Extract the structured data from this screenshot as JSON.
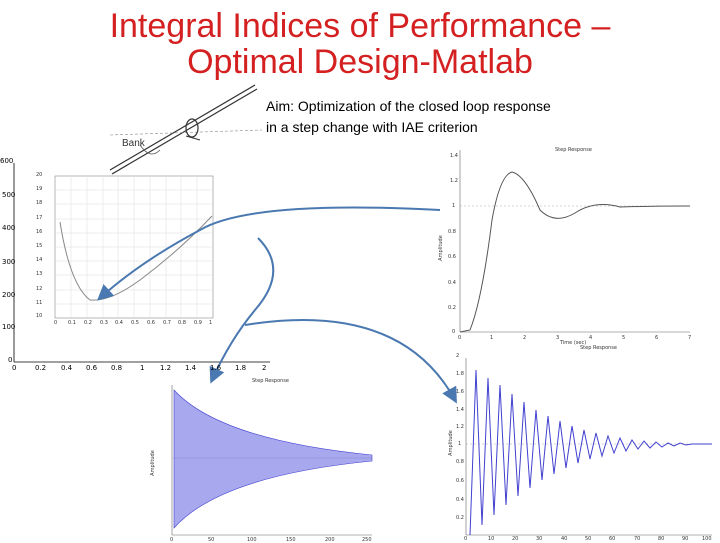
{
  "slide": {
    "title_line1": "Integral Indices of Performance –",
    "title_line2": "Optimal Design-Matlab",
    "aim_line1": "Aim: Optimization of  the closed loop response",
    "aim_line2": "in a step change with IAE criterion",
    "bank_label": "Bank"
  },
  "big_chart": {
    "y_ticks": [
      "600",
      "500",
      "400",
      "300",
      "200",
      "100",
      "0"
    ],
    "x_ticks": [
      "0",
      "0.2",
      "0.4",
      "0.6",
      "0.8",
      "1",
      "1.2",
      "1.4",
      "1.6",
      "1.8",
      "2"
    ]
  },
  "inset_chart": {
    "y_ticks": [
      "20",
      "19",
      "18",
      "17",
      "16",
      "15",
      "14",
      "13",
      "12",
      "11",
      "10"
    ],
    "x_ticks": [
      "0",
      "0.1",
      "0.2",
      "0.3",
      "0.4",
      "0.5",
      "0.6",
      "0.7",
      "0.8",
      "0.9",
      "1"
    ]
  },
  "step_chart": {
    "title": "Step Response",
    "xlabel": "Time (sec)",
    "ylabel": "Amplitude",
    "y_ticks": [
      "1.4",
      "1.2",
      "1",
      "0.8",
      "0.6",
      "0.4",
      "0.2",
      "0"
    ],
    "x_ticks": [
      "0",
      "1",
      "2",
      "3",
      "4",
      "5",
      "6",
      "7"
    ]
  },
  "lower_left_chart": {
    "title": "Step Response",
    "ylabel": "Amplitude",
    "x_ticks": [
      "0",
      "50",
      "100",
      "150",
      "200",
      "250"
    ]
  },
  "lower_right_chart": {
    "title": "Step Response",
    "ylabel": "Amplitude",
    "y_ticks": [
      "2",
      "1.8",
      "1.6",
      "1.4",
      "1.2",
      "1",
      "0.8",
      "0.6",
      "0.4",
      "0.2"
    ],
    "x_ticks": [
      "0",
      "10",
      "20",
      "30",
      "40",
      "50",
      "60",
      "70",
      "80",
      "90",
      "100"
    ]
  },
  "colors": {
    "title": "#d42020",
    "arrow": "#4a78b0",
    "response": "#4040d0"
  }
}
